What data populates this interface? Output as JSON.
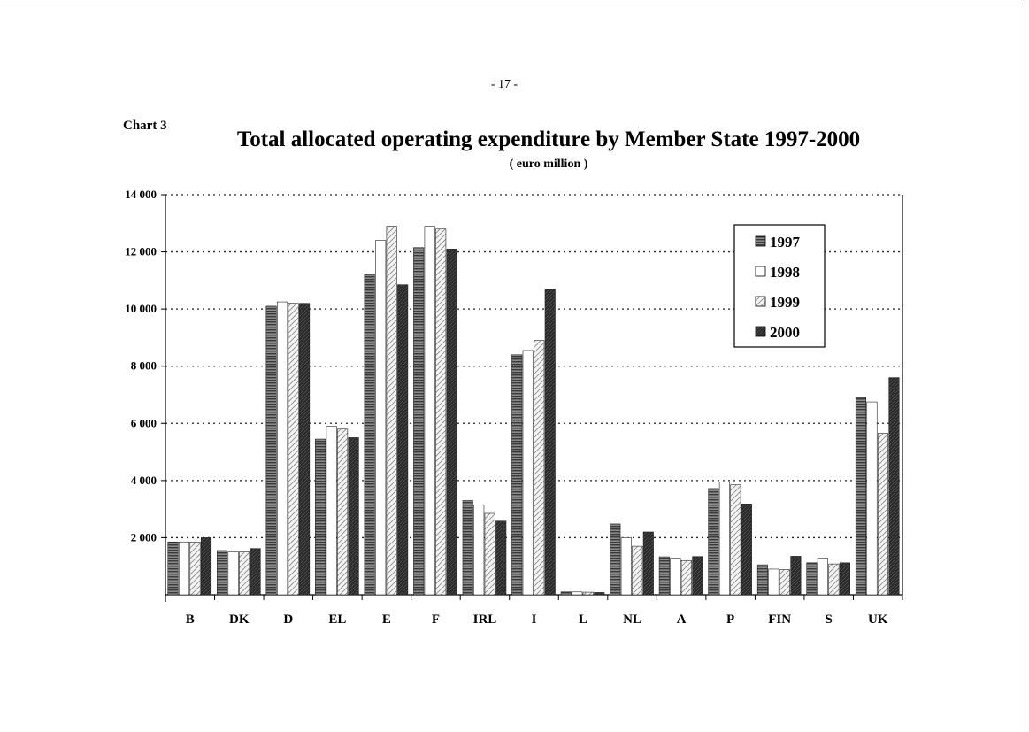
{
  "page": {
    "page_number": "- 17 -",
    "chart_label": "Chart 3"
  },
  "chart_data": {
    "type": "bar",
    "title": "Total allocated operating expenditure by Member State 1997-2000",
    "subtitle": "( euro million )",
    "xlabel": "",
    "ylabel": "",
    "ylim": [
      0,
      14000
    ],
    "yticks": [
      2000,
      4000,
      6000,
      8000,
      10000,
      12000,
      14000
    ],
    "ytick_labels": [
      "2 000",
      "4 000",
      "6 000",
      "8 000",
      "10 000",
      "12 000",
      "14 000"
    ],
    "grid": "horizontal dotted",
    "legend_position": "top-right",
    "categories": [
      "B",
      "DK",
      "D",
      "EL",
      "E",
      "F",
      "IRL",
      "I",
      "L",
      "NL",
      "A",
      "P",
      "FIN",
      "S",
      "UK"
    ],
    "series": [
      {
        "name": "1997",
        "color": "#555555",
        "pattern": "horizontal-lines",
        "values": [
          1850,
          1550,
          10100,
          5450,
          11200,
          12150,
          3300,
          8400,
          100,
          2480,
          1330,
          3720,
          1050,
          1120,
          6900
        ]
      },
      {
        "name": "1998",
        "color": "#ffffff",
        "pattern": "solid",
        "values": [
          1850,
          1500,
          10250,
          5900,
          12400,
          12900,
          3150,
          8550,
          100,
          2000,
          1280,
          3950,
          900,
          1280,
          6750
        ]
      },
      {
        "name": "1999",
        "color": "#eeeeee",
        "pattern": "diagonal-hatch",
        "values": [
          1850,
          1500,
          10200,
          5800,
          12900,
          12800,
          2850,
          8900,
          90,
          1700,
          1200,
          3850,
          880,
          1080,
          5650
        ]
      },
      {
        "name": "2000",
        "color": "#2a2a2a",
        "pattern": "dense",
        "values": [
          2000,
          1620,
          10200,
          5500,
          10850,
          12100,
          2580,
          10700,
          80,
          2200,
          1340,
          3180,
          1350,
          1120,
          7600
        ]
      }
    ]
  }
}
